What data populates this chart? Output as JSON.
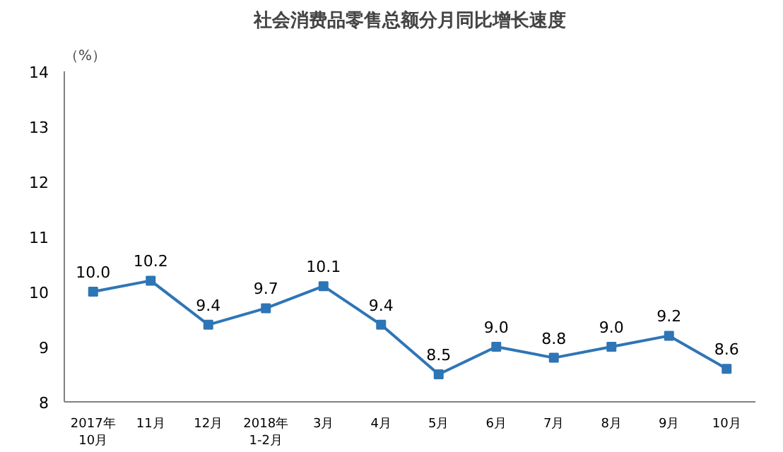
{
  "chart_data": {
    "type": "line",
    "title": "社会消费品零售总额分月同比增长速度",
    "ylabel": "（%）",
    "categories": [
      "2017年\n10月",
      "11月",
      "12月",
      "2018年\n1-2月",
      "3月",
      "4月",
      "5月",
      "6月",
      "7月",
      "8月",
      "9月",
      "10月"
    ],
    "series": [
      {
        "color": "#2e75b6",
        "values": [
          10.0,
          10.2,
          9.4,
          9.7,
          10.1,
          9.4,
          8.5,
          9.0,
          8.8,
          9.0,
          9.2,
          8.6
        ],
        "value_labels": [
          "10.0",
          "10.2",
          "9.4",
          "9.7",
          "10.1",
          "9.4",
          "8.5",
          "9.0",
          "8.8",
          "9.0",
          "9.2",
          "8.6"
        ]
      }
    ],
    "ylim": [
      8,
      14
    ],
    "yticks": [
      8,
      9,
      10,
      11,
      12,
      13,
      14
    ],
    "grid": false,
    "marker": "square",
    "line_style": "solid"
  }
}
